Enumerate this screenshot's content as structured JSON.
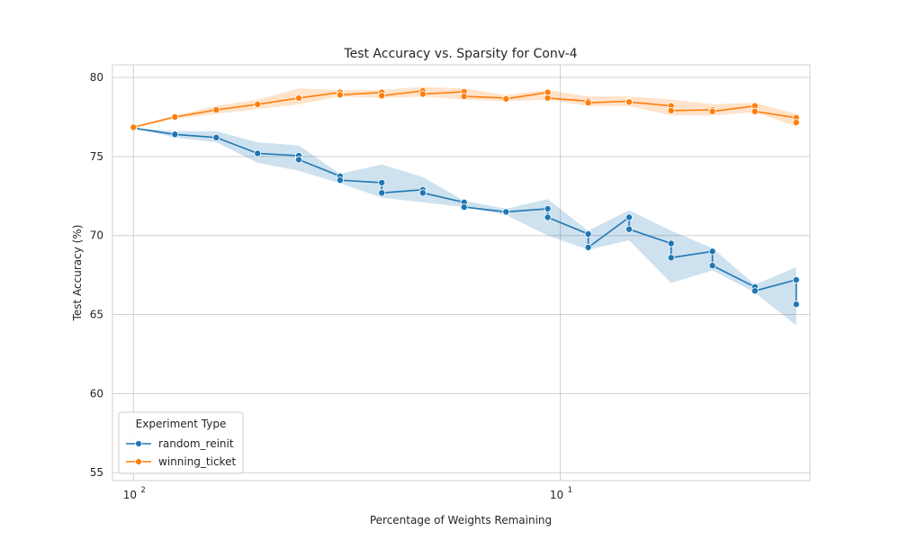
{
  "chart_data": {
    "type": "line",
    "title": "Test Accuracy vs. Sparsity for Conv-4",
    "xlabel": "Percentage of Weights Remaining",
    "ylabel": "Test Accuracy (%)",
    "x_scale": "log",
    "x_reversed": true,
    "xlim": [
      112,
      2.6
    ],
    "ylim": [
      54.5,
      80.8
    ],
    "x_ticks": [
      {
        "value": 100,
        "label": "10",
        "exp": "2"
      },
      {
        "value": 10,
        "label": "10",
        "exp": "1"
      }
    ],
    "y_ticks": [
      55,
      60,
      65,
      70,
      75,
      80
    ],
    "grid": true,
    "legend": {
      "title": "Experiment Type",
      "position": "lower-left"
    },
    "series": [
      {
        "name": "random_reinit",
        "color": "#1f77b4",
        "x": [
          100,
          80,
          64,
          51.2,
          41,
          32.8,
          26.2,
          21,
          16.8,
          13.4,
          10.7,
          8.6,
          6.9,
          5.5,
          4.4,
          3.5,
          2.8
        ],
        "y": [
          76.8,
          76.4,
          76.2,
          75.2,
          74.9,
          73.6,
          73.0,
          72.8,
          71.9,
          71.5,
          71.4,
          69.7,
          70.7,
          69.1,
          68.5,
          66.6,
          66.5
        ],
        "points": [
          [
            100,
            76.8
          ],
          [
            80,
            76.4
          ],
          [
            64,
            76.2
          ],
          [
            51.2,
            75.2
          ],
          [
            41,
            75.05
          ],
          [
            41,
            74.8
          ],
          [
            32.8,
            73.75
          ],
          [
            32.8,
            73.5
          ],
          [
            26.2,
            73.35
          ],
          [
            26.2,
            72.7
          ],
          [
            21,
            72.9
          ],
          [
            21,
            72.7
          ],
          [
            16.8,
            72.1
          ],
          [
            16.8,
            71.8
          ],
          [
            13.4,
            71.5
          ],
          [
            10.7,
            71.7
          ],
          [
            10.7,
            71.15
          ],
          [
            8.6,
            70.1
          ],
          [
            8.6,
            69.25
          ],
          [
            6.9,
            71.15
          ],
          [
            6.9,
            70.4
          ],
          [
            5.5,
            69.5
          ],
          [
            5.5,
            68.6
          ],
          [
            4.4,
            69.0
          ],
          [
            4.4,
            68.1
          ],
          [
            3.5,
            66.75
          ],
          [
            3.5,
            66.5
          ],
          [
            2.8,
            67.2
          ],
          [
            2.8,
            65.65
          ]
        ],
        "band_lower": [
          76.8,
          76.2,
          75.9,
          74.6,
          74.1,
          73.3,
          72.4,
          72.1,
          71.8,
          71.3,
          70.0,
          69.1,
          69.7,
          67.0,
          67.8,
          66.4,
          64.3
        ],
        "band_upper": [
          76.8,
          76.6,
          76.6,
          75.9,
          75.7,
          73.9,
          74.5,
          73.7,
          72.2,
          71.7,
          72.3,
          70.3,
          71.6,
          70.3,
          69.2,
          66.9,
          68.0
        ]
      },
      {
        "name": "winning_ticket",
        "color": "#ff7f0e",
        "x": [
          100,
          80,
          64,
          51.2,
          41,
          32.8,
          26.2,
          21,
          16.8,
          13.4,
          10.7,
          8.6,
          6.9,
          5.5,
          4.4,
          3.5,
          2.8
        ],
        "y": [
          76.8,
          77.5,
          77.9,
          78.3,
          78.7,
          79.0,
          79.0,
          79.1,
          79.0,
          78.7,
          78.9,
          78.5,
          78.5,
          78.1,
          77.9,
          78.1,
          77.3
        ],
        "points": [
          [
            100,
            76.85
          ],
          [
            80,
            77.5
          ],
          [
            64,
            77.95
          ],
          [
            51.2,
            78.3
          ],
          [
            41,
            78.7
          ],
          [
            32.8,
            79.05
          ],
          [
            32.8,
            78.9
          ],
          [
            26.2,
            79.05
          ],
          [
            26.2,
            78.85
          ],
          [
            21,
            79.15
          ],
          [
            21,
            78.95
          ],
          [
            16.8,
            79.1
          ],
          [
            16.8,
            78.8
          ],
          [
            13.4,
            78.7
          ],
          [
            13.4,
            78.65
          ],
          [
            10.7,
            79.05
          ],
          [
            10.7,
            78.7
          ],
          [
            8.6,
            78.5
          ],
          [
            8.6,
            78.4
          ],
          [
            6.9,
            78.5
          ],
          [
            6.9,
            78.45
          ],
          [
            5.5,
            78.2
          ],
          [
            5.5,
            77.9
          ],
          [
            4.4,
            77.95
          ],
          [
            4.4,
            77.85
          ],
          [
            3.5,
            78.2
          ],
          [
            3.5,
            77.85
          ],
          [
            2.8,
            77.45
          ],
          [
            2.8,
            77.15
          ]
        ],
        "band_lower": [
          76.8,
          77.4,
          77.7,
          78.0,
          78.3,
          78.8,
          78.7,
          78.8,
          78.6,
          78.5,
          78.6,
          78.2,
          78.2,
          77.6,
          77.6,
          77.8,
          76.9
        ],
        "band_upper": [
          76.9,
          77.6,
          78.2,
          78.6,
          79.3,
          79.2,
          79.2,
          79.4,
          79.3,
          78.9,
          79.2,
          78.8,
          78.8,
          78.6,
          78.3,
          78.4,
          77.7
        ]
      }
    ]
  }
}
